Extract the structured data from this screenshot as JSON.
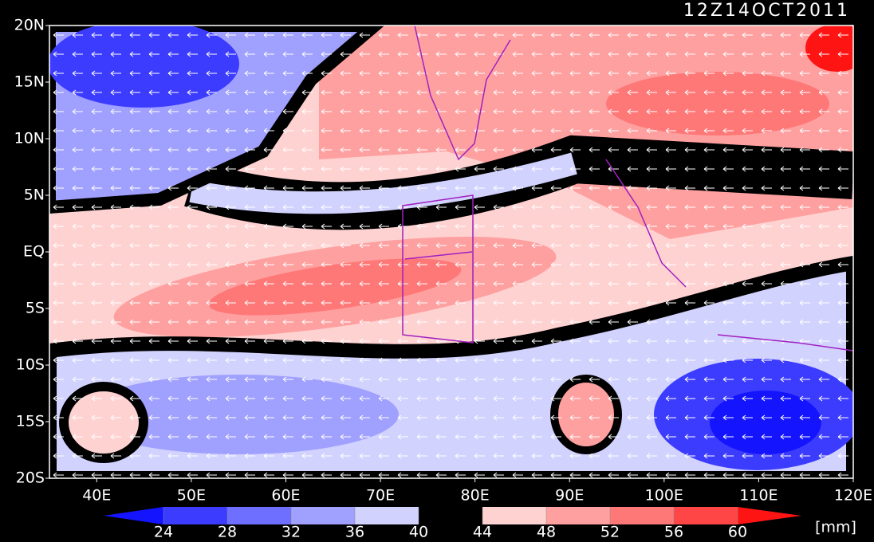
{
  "header": {
    "title": "12Z14OCT2011"
  },
  "map": {
    "lat_labels": [
      "20N",
      "15N",
      "10N",
      "5N",
      "EQ",
      "5S",
      "10S",
      "15S",
      "20S"
    ],
    "lon_labels": [
      "40E",
      "50E",
      "60E",
      "70E",
      "80E",
      "90E",
      "100E",
      "110E",
      "120E"
    ]
  },
  "colorbar": {
    "labels": [
      24,
      28,
      32,
      36,
      40,
      44,
      48,
      52,
      56,
      60
    ],
    "colors": [
      "#1414ff",
      "#3c3cff",
      "#6e6eff",
      "#a0a0ff",
      "#d2d2ff",
      "#000000",
      "#ffd2d2",
      "#ffa0a0",
      "#ff7878",
      "#ff4646",
      "#ff1414"
    ],
    "unit": "[mm]"
  }
}
